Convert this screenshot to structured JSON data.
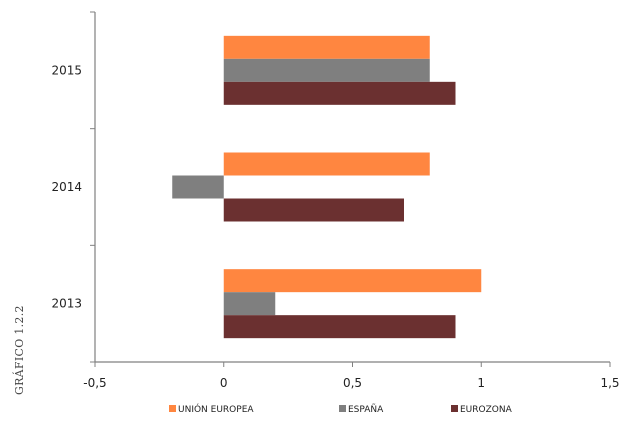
{
  "chart_data": {
    "type": "bar",
    "orientation": "horizontal",
    "categories": [
      "2015",
      "2014",
      "2013"
    ],
    "series": [
      {
        "name": "UNIÓN EUROPEA",
        "color": "#ff8640",
        "values": [
          0.8,
          0.8,
          1.0
        ]
      },
      {
        "name": "ESPAÑA",
        "color": "#7f7f7f",
        "values": [
          0.8,
          -0.2,
          0.2
        ]
      },
      {
        "name": "EUROZONA",
        "color": "#6b3030",
        "values": [
          0.9,
          0.7,
          0.9
        ]
      }
    ],
    "x_ticks": [
      "-0,5",
      "0",
      "0,5",
      "1",
      "1,5"
    ],
    "x_tick_values": [
      -0.5,
      0,
      0.5,
      1,
      1.5
    ],
    "xlim": [
      -0.5,
      1.5
    ],
    "grid": false,
    "legend_position": "bottom",
    "side_label": "GRÁFICO 1.2.2"
  }
}
